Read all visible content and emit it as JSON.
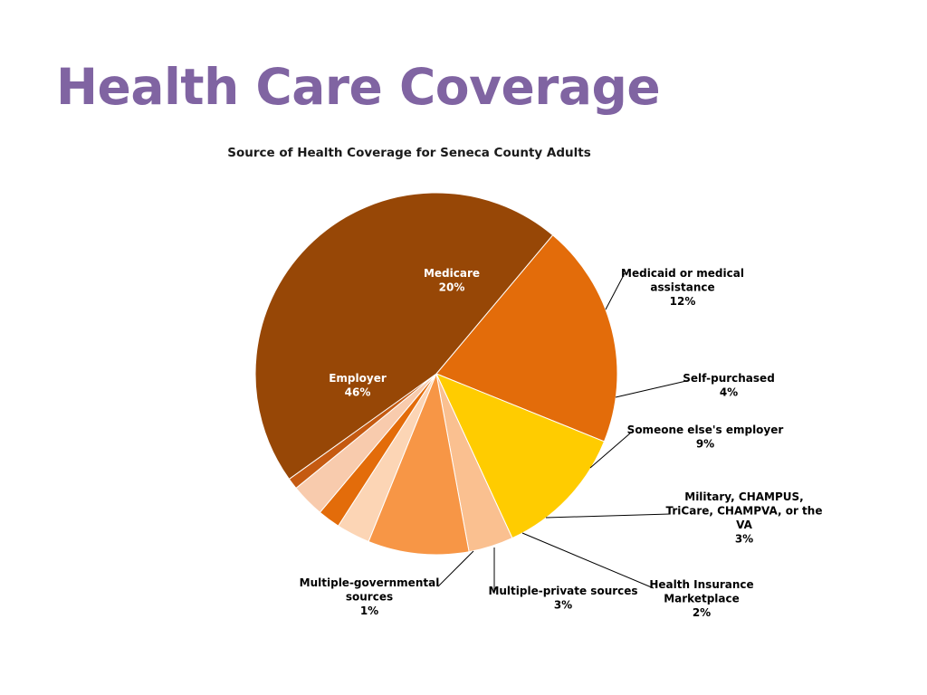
{
  "slide": {
    "title": "Health Care Coverage"
  },
  "chart_data": {
    "type": "pie",
    "title": "Source of Health Coverage for Seneca County Adults",
    "unit": "%",
    "legend": "none",
    "slices": [
      {
        "label": [
          "Medicare"
        ],
        "value": 20,
        "display": "20%",
        "color": "#e36c0a",
        "label_color": "#ffffff",
        "inside": true
      },
      {
        "label": [
          "Medicaid or medical",
          "assistance"
        ],
        "value": 12,
        "display": "12%",
        "color": "#ffcc00",
        "label_color": "#000000",
        "inside": false
      },
      {
        "label": [
          "Self-purchased"
        ],
        "value": 4,
        "display": "4%",
        "color": "#fac090",
        "label_color": "#000000",
        "inside": false
      },
      {
        "label": [
          "Someone else's employer"
        ],
        "value": 9,
        "display": "9%",
        "color": "#f79646",
        "label_color": "#000000",
        "inside": false
      },
      {
        "label": [
          "Military, CHAMPUS,",
          "TriCare, CHAMPVA, or the",
          "VA"
        ],
        "value": 3,
        "display": "3%",
        "color": "#fcd5b5",
        "label_color": "#000000",
        "inside": false
      },
      {
        "label": [
          "Health Insurance",
          "Marketplace"
        ],
        "value": 2,
        "display": "2%",
        "color": "#e36c0a",
        "label_color": "#000000",
        "inside": false
      },
      {
        "label": [
          "Multiple-private sources"
        ],
        "value": 3,
        "display": "3%",
        "color": "#f8cbad",
        "label_color": "#000000",
        "inside": false
      },
      {
        "label": [
          "Multiple-governmental",
          "sources"
        ],
        "value": 1,
        "display": "1%",
        "color": "#c55a11",
        "label_color": "#000000",
        "inside": false
      },
      {
        "label": [
          "Employer"
        ],
        "value": 46,
        "display": "46%",
        "color": "#974706",
        "label_color": "#ffffff",
        "inside": true
      }
    ]
  }
}
